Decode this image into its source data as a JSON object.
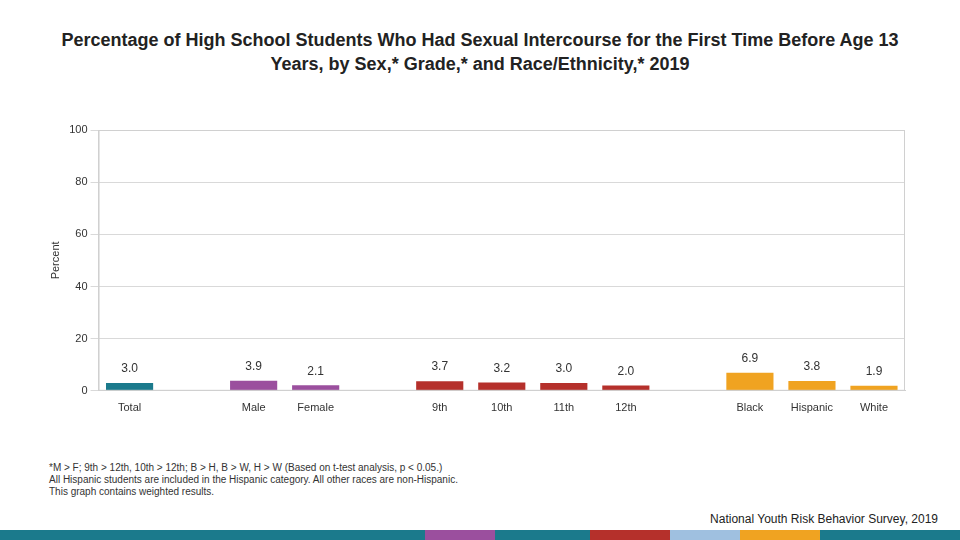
{
  "chart_data": {
    "type": "bar",
    "title": "Percentage of High School Students Who Had Sexual Intercourse for the First Time Before Age 13 Years, by Sex,* Grade,* and Race/Ethnicity,* 2019",
    "ylabel": "Percent",
    "categories": [
      "Total",
      null,
      "Male",
      "Female",
      null,
      "9th",
      "10th",
      "11th",
      "12th",
      null,
      "Black",
      "Hispanic",
      "White"
    ],
    "values": [
      3.0,
      null,
      3.9,
      2.1,
      null,
      3.7,
      3.2,
      3.0,
      2.0,
      null,
      6.9,
      3.8,
      1.9
    ],
    "value_labels": [
      "3.0",
      null,
      "3.9",
      "2.1",
      null,
      "3.7",
      "3.2",
      "3.0",
      "2.0",
      null,
      "6.9",
      "3.8",
      "1.9"
    ],
    "colors": [
      "#1b7a8c",
      null,
      "#9b4f9e",
      "#9b4f9e",
      null,
      "#b5302b",
      "#b5302b",
      "#b5302b",
      "#b5302b",
      null,
      "#f0a321",
      "#f0a321",
      "#f0a321"
    ],
    "data_labels": true,
    "ylim": [
      0,
      100
    ],
    "yticks": [
      0,
      20,
      40,
      60,
      80,
      100
    ],
    "grid": true,
    "notes": [
      "*M > F; 9th > 12th, 10th > 12th; B > H, B > W, H > W (Based on t-test analysis, p < 0.05.)",
      "All Hispanic students are included in the Hispanic category.  All other races are non-Hispanic.",
      "This graph contains weighted results."
    ],
    "source": "National Youth Risk Behavior Survey, 2019"
  }
}
